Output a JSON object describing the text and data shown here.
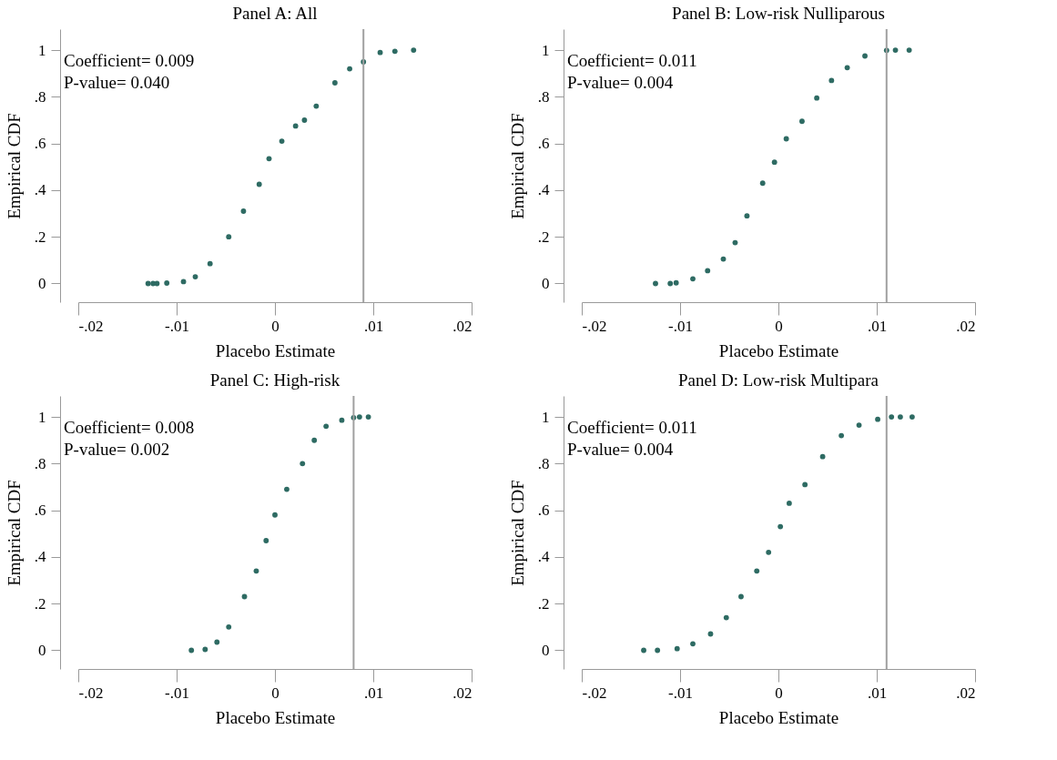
{
  "chart_data": [
    {
      "type": "scatter",
      "title": "Panel A: All",
      "xlabel": "Placebo Estimate",
      "ylabel": "Empirical CDF",
      "marker": "circle",
      "color": "#2e6b63",
      "x": [
        -0.0129,
        -0.0124,
        -0.012,
        -0.011,
        -0.0093,
        -0.0081,
        -0.0066,
        -0.0047,
        -0.0032,
        -0.0016,
        -0.0006,
        0.0007,
        0.0021,
        0.003,
        0.0042,
        0.0061,
        0.0076,
        0.009,
        0.0107,
        0.0122,
        0.0141
      ],
      "values": [
        0,
        0,
        0,
        0.002,
        0.008,
        0.029,
        0.085,
        0.2,
        0.31,
        0.425,
        0.535,
        0.61,
        0.675,
        0.7,
        0.76,
        0.86,
        0.92,
        0.95,
        0.99,
        0.995,
        1
      ],
      "xlim": [
        -0.02,
        0.02
      ],
      "xticks": [
        {
          "value": -0.02,
          "label": "-.02"
        },
        {
          "value": -0.01,
          "label": "-.01"
        },
        0,
        {
          "value": 0.01,
          "label": ".01"
        },
        {
          "value": 0.02,
          "label": ".02"
        }
      ],
      "ylim": [
        -0.08,
        1.09
      ],
      "yticks": [
        0,
        {
          "value": 0.2,
          "label": ".2"
        },
        {
          "value": 0.4,
          "label": ".4"
        },
        {
          "value": 0.6,
          "label": ".6"
        },
        {
          "value": 0.8,
          "label": ".8"
        },
        1
      ],
      "ref_lines": [
        {
          "axis": "x",
          "value": 0.009,
          "color": "#a0a0a0"
        }
      ],
      "annotations": [
        "Coefficient= 0.009",
        "P-value= 0.040"
      ]
    },
    {
      "type": "scatter",
      "title": "Panel B: Low-risk Nulliparous",
      "xlabel": "Placebo Estimate",
      "ylabel": "Empirical CDF",
      "marker": "circle",
      "color": "#2e6b63",
      "x": [
        -0.0125,
        -0.011,
        -0.0104,
        -0.0087,
        -0.0072,
        -0.0056,
        -0.0044,
        -0.0032,
        -0.0016,
        -0.0004,
        0.0008,
        0.0024,
        0.0039,
        0.0054,
        0.007,
        0.0088,
        0.011,
        0.0119,
        0.0133
      ],
      "values": [
        0,
        0,
        0.003,
        0.02,
        0.055,
        0.105,
        0.175,
        0.29,
        0.43,
        0.52,
        0.62,
        0.695,
        0.795,
        0.87,
        0.925,
        0.975,
        0.999,
        1,
        1
      ],
      "xlim": [
        -0.02,
        0.02
      ],
      "xticks": [
        {
          "value": -0.02,
          "label": "-.02"
        },
        {
          "value": -0.01,
          "label": "-.01"
        },
        0,
        {
          "value": 0.01,
          "label": ".01"
        },
        {
          "value": 0.02,
          "label": ".02"
        }
      ],
      "ylim": [
        -0.08,
        1.09
      ],
      "yticks": [
        0,
        {
          "value": 0.2,
          "label": ".2"
        },
        {
          "value": 0.4,
          "label": ".4"
        },
        {
          "value": 0.6,
          "label": ".6"
        },
        {
          "value": 0.8,
          "label": ".8"
        },
        1
      ],
      "ref_lines": [
        {
          "axis": "x",
          "value": 0.011,
          "color": "#a0a0a0"
        }
      ],
      "annotations": [
        "Coefficient= 0.011",
        "P-value= 0.004"
      ]
    },
    {
      "type": "scatter",
      "title": "Panel C: High-risk",
      "xlabel": "Placebo Estimate",
      "ylabel": "Empirical CDF",
      "marker": "circle",
      "color": "#2e6b63",
      "x": [
        -0.0085,
        -0.0071,
        -0.0059,
        -0.0047,
        -0.0031,
        -0.0019,
        -0.0009,
        0.0,
        0.0012,
        0.0028,
        0.004,
        0.0052,
        0.0068,
        0.008,
        0.0086,
        0.0095
      ],
      "values": [
        0,
        0.004,
        0.035,
        0.1,
        0.23,
        0.34,
        0.47,
        0.58,
        0.69,
        0.8,
        0.9,
        0.96,
        0.986,
        0.997,
        1,
        1
      ],
      "xlim": [
        -0.02,
        0.02
      ],
      "xticks": [
        {
          "value": -0.02,
          "label": "-.02"
        },
        {
          "value": -0.01,
          "label": "-.01"
        },
        0,
        {
          "value": 0.01,
          "label": ".01"
        },
        {
          "value": 0.02,
          "label": ".02"
        }
      ],
      "ylim": [
        -0.08,
        1.09
      ],
      "yticks": [
        0,
        {
          "value": 0.2,
          "label": ".2"
        },
        {
          "value": 0.4,
          "label": ".4"
        },
        {
          "value": 0.6,
          "label": ".6"
        },
        {
          "value": 0.8,
          "label": ".8"
        },
        1
      ],
      "ref_lines": [
        {
          "axis": "x",
          "value": 0.008,
          "color": "#a0a0a0"
        }
      ],
      "annotations": [
        "Coefficient= 0.008",
        "P-value= 0.002"
      ]
    },
    {
      "type": "scatter",
      "title": "Panel D: Low-risk Multipara",
      "xlabel": "Placebo Estimate",
      "ylabel": "Empirical CDF",
      "marker": "circle",
      "color": "#2e6b63",
      "x": [
        -0.0137,
        -0.0123,
        -0.0103,
        -0.0087,
        -0.0069,
        -0.0053,
        -0.0038,
        -0.0022,
        -0.001,
        0.0002,
        0.0011,
        0.0027,
        0.0045,
        0.0064,
        0.0082,
        0.0101,
        0.0115,
        0.0124,
        0.0136
      ],
      "values": [
        0,
        0,
        0.007,
        0.028,
        0.07,
        0.14,
        0.23,
        0.34,
        0.42,
        0.53,
        0.63,
        0.71,
        0.83,
        0.92,
        0.965,
        0.99,
        1,
        1,
        1
      ],
      "xlim": [
        -0.02,
        0.02
      ],
      "xticks": [
        {
          "value": -0.02,
          "label": "-.02"
        },
        {
          "value": -0.01,
          "label": "-.01"
        },
        0,
        {
          "value": 0.01,
          "label": ".01"
        },
        {
          "value": 0.02,
          "label": ".02"
        }
      ],
      "ylim": [
        -0.08,
        1.09
      ],
      "yticks": [
        0,
        {
          "value": 0.2,
          "label": ".2"
        },
        {
          "value": 0.4,
          "label": ".4"
        },
        {
          "value": 0.6,
          "label": ".6"
        },
        {
          "value": 0.8,
          "label": ".8"
        },
        1
      ],
      "ref_lines": [
        {
          "axis": "x",
          "value": 0.011,
          "color": "#a0a0a0"
        }
      ],
      "annotations": [
        "Coefficient= 0.011",
        "P-value= 0.004"
      ]
    }
  ]
}
